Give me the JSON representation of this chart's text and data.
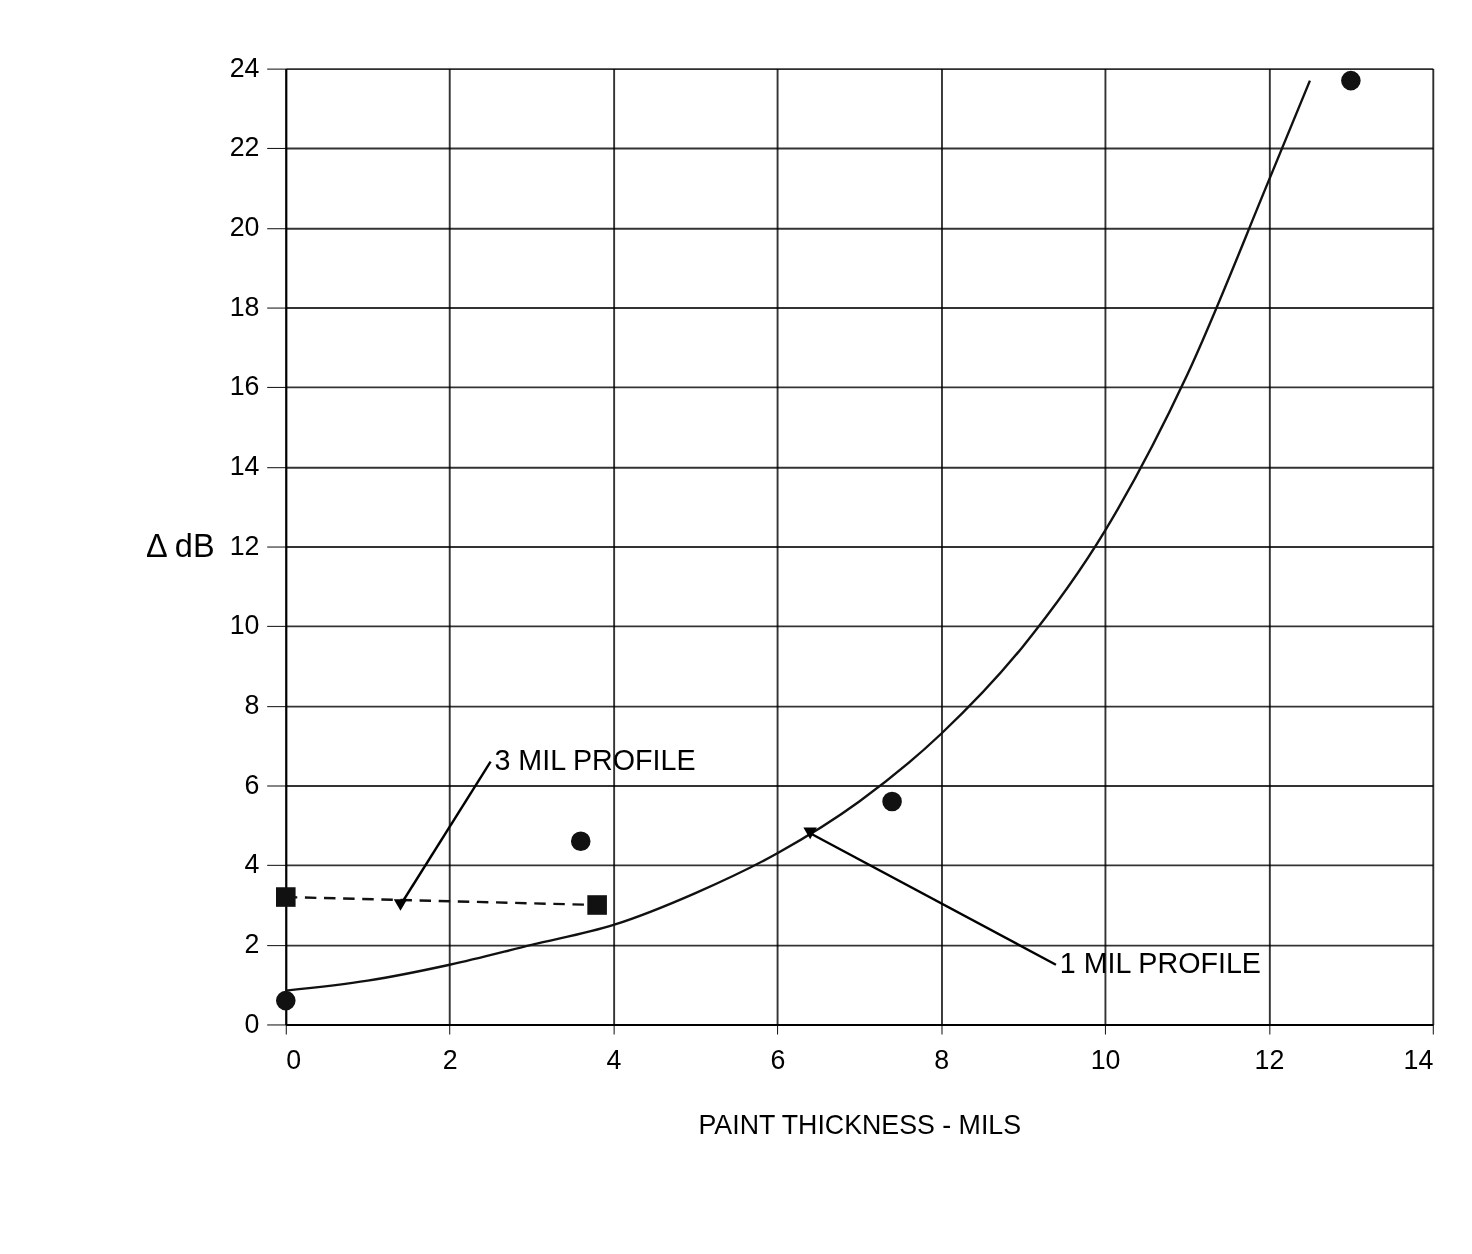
{
  "chart_data": {
    "type": "scatter",
    "xlabel": "PAINT THICKNESS  -  MILS",
    "ylabel": "Δ dB",
    "xlim": [
      0,
      14
    ],
    "ylim": [
      0,
      24
    ],
    "xticks": [
      0,
      2,
      4,
      6,
      8,
      10,
      12,
      14
    ],
    "yticks": [
      0,
      2,
      4,
      6,
      8,
      10,
      12,
      14,
      16,
      18,
      20,
      22,
      24
    ],
    "grid": true,
    "series": [
      {
        "marker": "circle",
        "color": "#111111",
        "x": [
          0,
          3.6,
          7.4,
          13
        ],
        "values": [
          0.6,
          4.6,
          5.6,
          23.7
        ]
      },
      {
        "type": "line",
        "marker": "none",
        "line_style": "solid",
        "color": "#111111",
        "x": [
          0,
          1,
          2,
          3,
          4,
          5,
          6,
          7,
          8,
          9,
          10,
          11,
          12,
          12.5
        ],
        "values": [
          0.85,
          1.1,
          1.5,
          2.0,
          2.5,
          3.3,
          4.3,
          5.6,
          7.3,
          9.5,
          12.4,
          16.3,
          21.2,
          23.7
        ]
      },
      {
        "type": "line",
        "marker": "square",
        "line_style": "dashed",
        "color": "#111111",
        "x": [
          0,
          3.8
        ],
        "values": [
          3.2,
          3.0
        ]
      }
    ],
    "annotations": [
      {
        "text": "3 MIL PROFILE",
        "x": 1.4,
        "y": 3.0
      },
      {
        "text": "1 MIL PROFILE",
        "x": 6.4,
        "y": 4.8
      }
    ]
  }
}
